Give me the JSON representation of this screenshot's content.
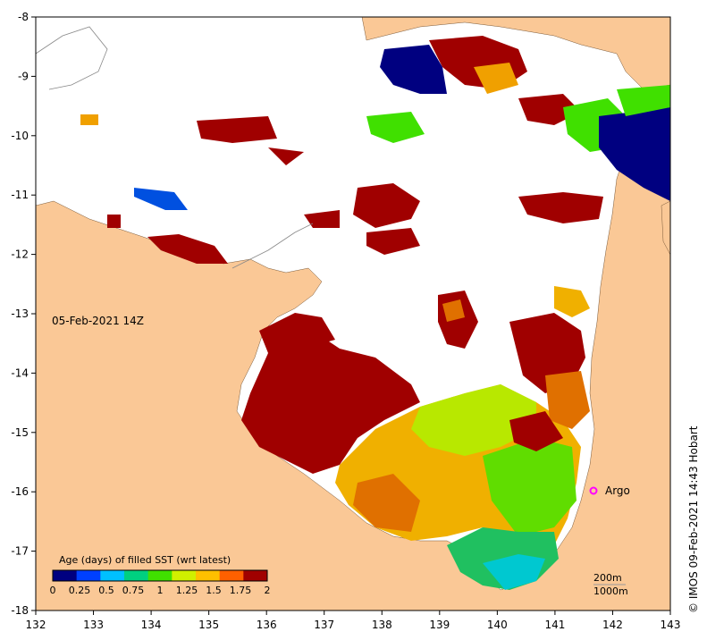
{
  "map": {
    "date_label": "05-Feb-2021 14Z",
    "credit": "© IMOS 09-Feb-2021 14:43 Hobart",
    "argo_label": "Argo",
    "x_axis": {
      "min": 132,
      "max": 143,
      "ticks": [
        "132",
        "133",
        "134",
        "135",
        "136",
        "137",
        "138",
        "139",
        "140",
        "141",
        "142",
        "143"
      ]
    },
    "y_axis": {
      "min": -18,
      "max": -8,
      "ticks": [
        "-8",
        "-9",
        "-10",
        "-11",
        "-12",
        "-13",
        "-14",
        "-15",
        "-16",
        "-17",
        "-18"
      ]
    },
    "colorbar": {
      "title": "Age (days) of filled SST (wrt latest)",
      "ticks": [
        "0",
        "0.25",
        "0.5",
        "0.75",
        "1",
        "1.25",
        "1.5",
        "1.75",
        "2"
      ],
      "colors": [
        "#000080",
        "#0040ff",
        "#00c0ff",
        "#00d080",
        "#40e000",
        "#d0f000",
        "#ffc000",
        "#ff6000",
        "#a00000"
      ]
    },
    "contour_legend": {
      "line1": "200m",
      "line2": "1000m"
    },
    "colors": {
      "land": "#fac896",
      "sea": "#ffffff",
      "argo": "#ff00ff"
    }
  }
}
